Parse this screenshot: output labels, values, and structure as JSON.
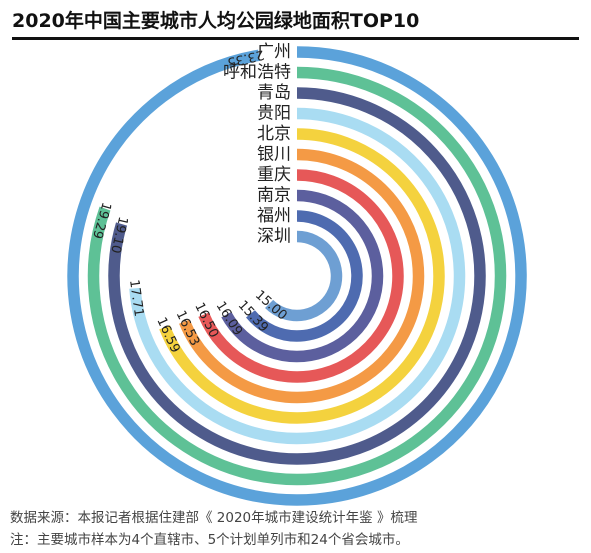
{
  "title": "2020年中国主要城市人均公园绿地面积TOP10",
  "footer": {
    "source": "数据来源：本报记者根据住建部《 2020年城市建设统计年鉴 》梳理",
    "note": "注：主要城市样本为4个直辖市、5个计划单列市和24个省会城市。"
  },
  "chart_data": {
    "type": "radial-bar",
    "title": "2020年中国主要城市人均公园绿地面积TOP10",
    "categories": [
      "广州",
      "呼和浩特",
      "青岛",
      "贵阳",
      "北京",
      "银川",
      "重庆",
      "南京",
      "福州",
      "深圳"
    ],
    "values": [
      23.35,
      19.29,
      19.1,
      17.71,
      16.59,
      16.53,
      16.5,
      16.09,
      15.39,
      15.0
    ],
    "value_labels": [
      "23.35",
      "19.29",
      "19.10",
      "17.71",
      "16.59",
      "16.53",
      "16.50",
      "16.09",
      "15.39",
      "15.00"
    ],
    "colors": [
      "#5BA2DA",
      "#5EC196",
      "#4F5B8C",
      "#A9DCF2",
      "#F4D23E",
      "#F49A45",
      "#E65858",
      "#5C5F9E",
      "#4E6BB0",
      "#6E9FD3"
    ]
  }
}
